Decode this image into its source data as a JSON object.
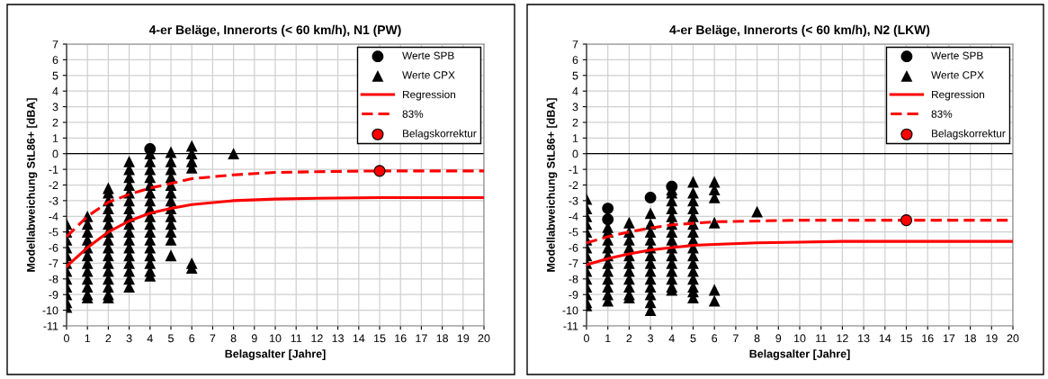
{
  "chart_data": [
    {
      "type": "scatter",
      "title": "4-er Beläge, Innerorts (< 60 km/h), N1 (PW)",
      "xlabel": "Belagsalter [Jahre]",
      "ylabel": "Modellabweichung StL86+ [dBA]",
      "xlim": [
        0,
        20
      ],
      "ylim": [
        -11,
        7
      ],
      "xticks": [
        0,
        1,
        2,
        3,
        4,
        5,
        6,
        7,
        8,
        9,
        10,
        11,
        12,
        13,
        14,
        15,
        16,
        17,
        18,
        19,
        20
      ],
      "yticks": [
        -11,
        -10,
        -9,
        -8,
        -7,
        -6,
        -5,
        -4,
        -3,
        -2,
        -1,
        0,
        1,
        2,
        3,
        4,
        5,
        6,
        7
      ],
      "grid": true,
      "legend": "top right",
      "series": [
        {
          "name": "Werte SPB",
          "marker": "circle",
          "color": "#000000",
          "x": [
            4
          ],
          "values": [
            0.3
          ]
        },
        {
          "name": "Werte CPX",
          "marker": "triangle",
          "color": "#000000",
          "x": [
            0,
            0,
            0,
            0,
            0,
            0,
            0,
            0,
            0,
            0,
            0,
            0,
            1,
            1,
            1,
            1,
            1,
            1,
            1,
            1,
            1,
            1,
            1,
            1,
            2,
            2,
            2,
            2,
            2,
            2,
            2,
            2,
            2,
            2,
            2,
            2,
            2,
            2,
            2,
            2,
            3,
            3,
            3,
            3,
            3,
            3,
            3,
            3,
            3,
            3,
            3,
            3,
            3,
            3,
            3,
            3,
            3,
            4,
            4,
            4,
            4,
            4,
            4,
            4,
            4,
            4,
            4,
            4,
            4,
            4,
            4,
            4,
            4,
            4,
            5,
            5,
            5,
            5,
            5,
            5,
            5,
            5,
            5,
            5,
            5,
            5,
            5,
            6,
            6,
            6,
            6,
            6,
            6,
            8
          ],
          "values": [
            -4.5,
            -5,
            -5.5,
            -6,
            -6.5,
            -7,
            -7.5,
            -8,
            -8.5,
            -9,
            -9.5,
            -9.8,
            -4,
            -4.5,
            -5,
            -5.5,
            -6,
            -6.5,
            -7,
            -7.5,
            -8,
            -8.5,
            -9,
            -9.2,
            -2.2,
            -2.5,
            -3,
            -3.5,
            -4,
            -4.5,
            -5,
            -5.5,
            -6,
            -6.5,
            -7,
            -7.5,
            -8,
            -8.5,
            -9,
            -9.2,
            -0.5,
            -1,
            -1.5,
            -2,
            -2.5,
            -3,
            -3.5,
            -4,
            -4.5,
            -5,
            -5.5,
            -6,
            -6.5,
            -7,
            -7.5,
            -8,
            -8.5,
            0,
            -0.5,
            -1,
            -1.5,
            -2,
            -2.5,
            -3,
            -3.5,
            -4,
            -4.5,
            -5,
            -5.5,
            -6,
            -6.5,
            -7,
            -7.5,
            -7.8,
            0.1,
            -0.5,
            -1,
            -1.5,
            -2,
            -2.5,
            -3,
            -3.5,
            -4,
            -4.5,
            -5,
            -5.5,
            -6.5,
            0.5,
            0,
            -0.5,
            -0.9,
            -7,
            -7.3,
            0
          ]
        },
        {
          "name": "Regression",
          "type": "line",
          "line_style": "solid",
          "color": "#ff0000",
          "x": [
            0,
            1,
            2,
            3,
            4,
            5,
            6,
            8,
            10,
            12,
            15,
            20
          ],
          "values": [
            -7.2,
            -6.0,
            -5.0,
            -4.3,
            -3.8,
            -3.5,
            -3.25,
            -3.0,
            -2.9,
            -2.85,
            -2.8,
            -2.8
          ]
        },
        {
          "name": "83%",
          "type": "line",
          "line_style": "dashed",
          "color": "#ff0000",
          "x": [
            0,
            1,
            2,
            3,
            4,
            5,
            6,
            8,
            10,
            12,
            15,
            20
          ],
          "values": [
            -5.3,
            -4.0,
            -3.1,
            -2.6,
            -2.2,
            -1.9,
            -1.6,
            -1.35,
            -1.2,
            -1.15,
            -1.1,
            -1.1
          ]
        },
        {
          "name": "Belagskorrektur",
          "marker": "circle",
          "color": "#ff0000",
          "x": [
            15
          ],
          "values": [
            -1.1
          ]
        }
      ]
    },
    {
      "type": "scatter",
      "title": "4-er Beläge, Innerorts (< 60 km/h), N2 (LKW)",
      "xlabel": "Belagsalter [Jahre]",
      "ylabel": "Modellabweichung StL86+ [dBA]",
      "xlim": [
        0,
        20
      ],
      "ylim": [
        -11,
        7
      ],
      "xticks": [
        0,
        1,
        2,
        3,
        4,
        5,
        6,
        7,
        8,
        9,
        10,
        11,
        12,
        13,
        14,
        15,
        16,
        17,
        18,
        19,
        20
      ],
      "yticks": [
        -11,
        -10,
        -9,
        -8,
        -7,
        -6,
        -5,
        -4,
        -3,
        -2,
        -1,
        0,
        1,
        2,
        3,
        4,
        5,
        6,
        7
      ],
      "grid": true,
      "legend": "top right",
      "series": [
        {
          "name": "Werte SPB",
          "marker": "circle",
          "color": "#000000",
          "x": [
            1,
            1,
            3,
            4
          ],
          "values": [
            -3.5,
            -4.2,
            -2.8,
            -2.1
          ]
        },
        {
          "name": "Werte CPX",
          "marker": "triangle",
          "color": "#000000",
          "x": [
            0,
            0,
            0,
            0,
            0,
            0,
            0,
            0,
            0,
            0,
            0,
            0,
            0,
            0,
            0,
            1,
            1,
            1,
            1,
            1,
            1,
            1,
            1,
            1,
            1,
            1,
            2,
            2,
            2,
            2,
            2,
            2,
            2,
            2,
            2,
            2,
            2,
            3,
            3,
            3,
            3,
            3,
            3,
            3,
            3,
            3,
            3,
            3,
            3,
            3,
            4,
            4,
            4,
            4,
            4,
            4,
            4,
            4,
            4,
            4,
            4,
            4,
            4,
            4,
            4,
            5,
            5,
            5,
            5,
            5,
            5,
            5,
            5,
            5,
            5,
            5,
            5,
            5,
            5,
            5,
            5,
            6,
            6,
            6,
            6,
            6,
            6,
            8
          ],
          "values": [
            -2.9,
            -3.5,
            -4,
            -4.5,
            -5,
            -5.5,
            -6,
            -6.5,
            -7,
            -7.5,
            -8,
            -8.5,
            -9,
            -9.5,
            -9.7,
            -4.7,
            -5,
            -5.5,
            -6,
            -6.5,
            -7,
            -7.5,
            -8,
            -8.5,
            -9,
            -9.4,
            -4.4,
            -5,
            -5.5,
            -6,
            -6.5,
            -7,
            -7.5,
            -8,
            -8.5,
            -9,
            -9.2,
            -3.8,
            -4.5,
            -5,
            -5.5,
            -6,
            -6.5,
            -7,
            -7.5,
            -8,
            -8.5,
            -9,
            -9.5,
            -10,
            -2.3,
            -2.5,
            -3,
            -3.5,
            -4,
            -4.5,
            -5,
            -5.5,
            -6,
            -6.5,
            -7,
            -7.5,
            -8,
            -8.5,
            -8.7,
            -1.8,
            -2.5,
            -3,
            -3.5,
            -4,
            -4.5,
            -5,
            -5.5,
            -6,
            -6.5,
            -7,
            -7.5,
            -8,
            -8.5,
            -8.8,
            -9.2,
            -1.8,
            -2.3,
            -2.8,
            -4.4,
            -8.7,
            -9.4,
            -3.7
          ]
        },
        {
          "name": "Regression",
          "type": "line",
          "line_style": "solid",
          "color": "#ff0000",
          "x": [
            0,
            1,
            2,
            3,
            4,
            5,
            6,
            8,
            10,
            12,
            20
          ],
          "values": [
            -7.1,
            -6.7,
            -6.4,
            -6.15,
            -6.0,
            -5.85,
            -5.8,
            -5.7,
            -5.65,
            -5.6,
            -5.6
          ]
        },
        {
          "name": "83%",
          "type": "line",
          "line_style": "dashed",
          "color": "#ff0000",
          "x": [
            0,
            1,
            2,
            3,
            4,
            5,
            6,
            8,
            10,
            20
          ],
          "values": [
            -5.7,
            -5.3,
            -5.0,
            -4.75,
            -4.55,
            -4.45,
            -4.35,
            -4.3,
            -4.25,
            -4.25
          ]
        },
        {
          "name": "Belagskorrektur",
          "marker": "circle",
          "color": "#ff0000",
          "x": [
            15
          ],
          "values": [
            -4.25
          ]
        }
      ]
    }
  ]
}
